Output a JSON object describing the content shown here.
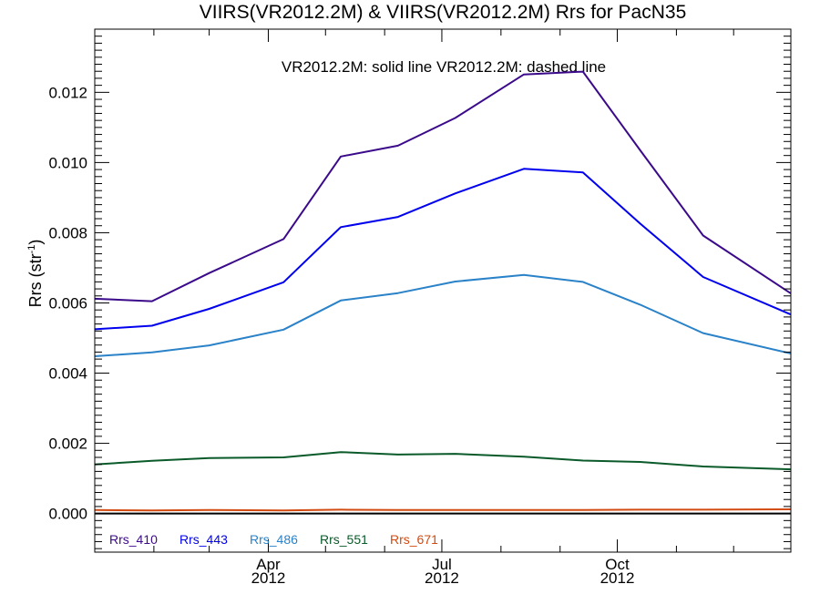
{
  "chart_data": {
    "type": "line",
    "title": "VIIRS(VR2012.2M) & VIIRS(VR2012.2M)  Rrs for PacN35",
    "annotation": "VR2012.2M: solid line   VR2012.2M: dashed line",
    "ylabel": "Rrs (str",
    "ylabel_superscript": "-1",
    "ylabel_close": ")",
    "xlabel": "",
    "ylim": [
      -0.0011,
      0.0138
    ],
    "xlim": [
      "2012-01-01",
      "2012-12-31"
    ],
    "y_ticks": [
      "0.000",
      "0.002",
      "0.004",
      "0.006",
      "0.008",
      "0.010",
      "0.012"
    ],
    "y_tick_values": [
      0.0,
      0.002,
      0.004,
      0.006,
      0.008,
      0.01,
      0.012
    ],
    "x_ticks": [
      {
        "month": "Apr",
        "year": "2012",
        "date": "2012-04-01"
      },
      {
        "month": "Jul",
        "year": "2012",
        "date": "2012-07-01"
      },
      {
        "month": "Oct",
        "year": "2012",
        "date": "2012-10-01"
      }
    ],
    "x": [
      "2012-01-01",
      "2012-01-31",
      "2012-03-01",
      "2012-04-09",
      "2012-05-09",
      "2012-06-08",
      "2012-07-08",
      "2012-08-13",
      "2012-09-13",
      "2012-10-13",
      "2012-11-15",
      "2012-12-31"
    ],
    "series": [
      {
        "name": "Rrs_410",
        "color": "#3a0a8a",
        "values": [
          0.00612,
          0.00605,
          0.00685,
          0.00782,
          0.01017,
          0.01048,
          0.01127,
          0.01251,
          0.01259,
          0.01035,
          0.00792,
          0.00627
        ]
      },
      {
        "name": "Rrs_443",
        "color": "#0000ee",
        "values": [
          0.00525,
          0.00535,
          0.00583,
          0.00659,
          0.00816,
          0.00845,
          0.00912,
          0.00982,
          0.00972,
          0.00826,
          0.00674,
          0.00567
        ]
      },
      {
        "name": "Rrs_486",
        "color": "#2a82c8",
        "values": [
          0.00448,
          0.00459,
          0.00479,
          0.00524,
          0.00607,
          0.00628,
          0.00661,
          0.0068,
          0.0066,
          0.00595,
          0.00514,
          0.00456
        ]
      },
      {
        "name": "Rrs_551",
        "color": "#0a5a2a",
        "values": [
          0.0014,
          0.0015,
          0.00158,
          0.0016,
          0.00175,
          0.00168,
          0.0017,
          0.00162,
          0.00151,
          0.00147,
          0.00134,
          0.00126
        ]
      },
      {
        "name": "Rrs_671",
        "color": "#d24a10",
        "values": [
          0.0001,
          9e-05,
          0.0001,
          9e-05,
          0.00011,
          0.0001,
          0.0001,
          0.0001,
          0.0001,
          0.00011,
          0.00011,
          0.00012
        ]
      }
    ],
    "zero_line": true,
    "grid": false,
    "legend_placement": "bottom-left"
  }
}
